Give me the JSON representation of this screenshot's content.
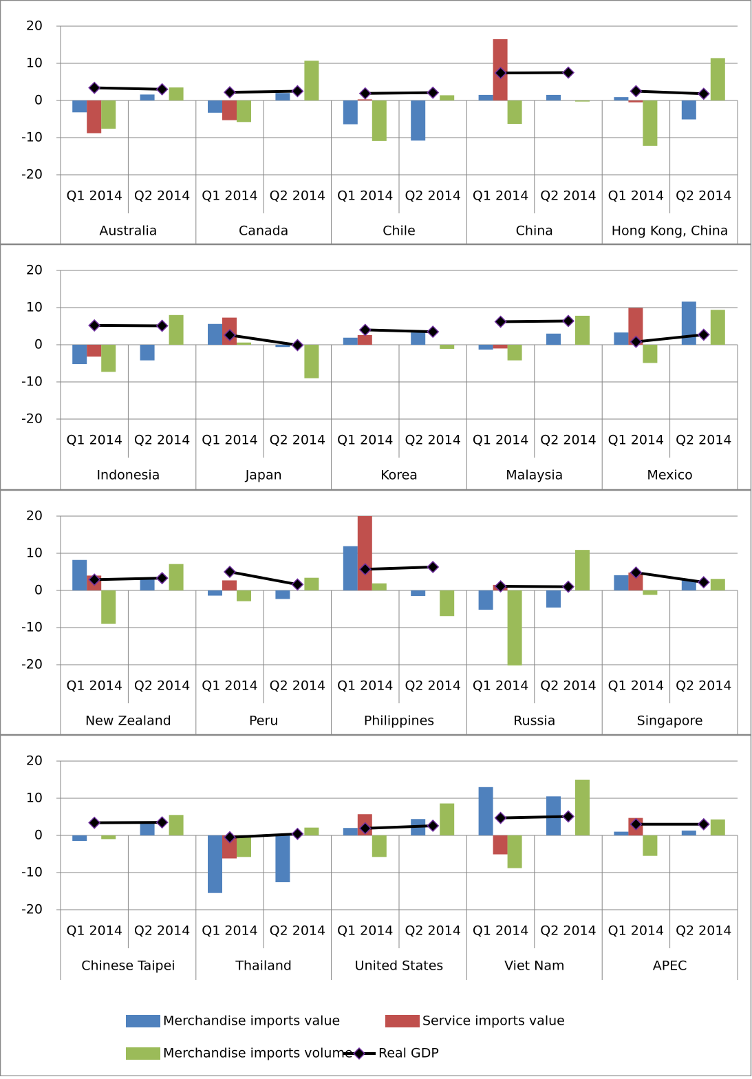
{
  "chart_data": {
    "type": "bar",
    "ylim": [
      -20,
      20
    ],
    "yticks": [
      -20,
      -10,
      0,
      10,
      20
    ],
    "grid": true,
    "categories": [
      "Q1 2014",
      "Q2 2014"
    ],
    "series": [
      {
        "name": "Merchandise imports value",
        "color": "#4f81bd",
        "type": "bar"
      },
      {
        "name": "Service imports value",
        "color": "#c0504d",
        "type": "bar"
      },
      {
        "name": "Merchandise imports volume",
        "color": "#9bbb59",
        "type": "bar"
      },
      {
        "name": "Real GDP",
        "color": "#000000",
        "type": "line"
      }
    ],
    "panels": [
      {
        "groups": [
          "Australia",
          "Canada",
          "Chile",
          "China",
          "Hong Kong, China"
        ],
        "values": [
          [
            -3.2,
            1.6,
            -3.3,
            2.0,
            -6.4,
            -10.8,
            1.5,
            1.5,
            0.9,
            -5.1
          ],
          [
            -8.8,
            null,
            -5.3,
            null,
            0.3,
            null,
            16.5,
            null,
            -0.5,
            null
          ],
          [
            -7.6,
            3.5,
            -5.8,
            10.7,
            -10.9,
            1.4,
            -6.3,
            -0.3,
            -12.2,
            11.4
          ],
          [
            3.4,
            3.0,
            2.2,
            2.5,
            1.9,
            2.1,
            7.4,
            7.5,
            2.5,
            1.8
          ]
        ]
      },
      {
        "groups": [
          "Indonesia",
          "Japan",
          "Korea",
          "Malaysia",
          "Mexico"
        ],
        "values": [
          [
            -5.2,
            -4.2,
            5.6,
            -0.6,
            1.9,
            3.3,
            -1.3,
            3.0,
            3.3,
            11.6
          ],
          [
            -3.2,
            null,
            7.3,
            null,
            2.6,
            null,
            -1.0,
            null,
            9.9,
            null
          ],
          [
            -7.3,
            8.0,
            0.6,
            -9.0,
            0,
            -1.1,
            -4.2,
            7.8,
            -4.9,
            9.4
          ],
          [
            5.2,
            5.1,
            2.6,
            -0.1,
            4.0,
            3.5,
            6.2,
            6.4,
            0.8,
            2.7
          ]
        ]
      },
      {
        "groups": [
          "New Zealand",
          "Peru",
          "Philippines",
          "Russia",
          "Singapore"
        ],
        "values": [
          [
            8.2,
            3.5,
            -1.4,
            -2.3,
            11.9,
            -1.5,
            -5.2,
            -4.6,
            4.1,
            2.8
          ],
          [
            4.0,
            null,
            2.7,
            null,
            20.0,
            null,
            1.5,
            null,
            4.8,
            null
          ],
          [
            -9.0,
            7.1,
            -2.9,
            3.4,
            1.9,
            -6.9,
            -20.2,
            10.9,
            -1.2,
            3.1
          ],
          [
            2.9,
            3.3,
            5.0,
            1.6,
            5.7,
            6.3,
            1.1,
            1.0,
            4.8,
            2.2
          ]
        ]
      },
      {
        "groups": [
          "Chinese Taipei",
          "Thailand",
          "United States",
          "Viet Nam",
          "APEC"
        ],
        "values": [
          [
            -1.5,
            3.5,
            -15.5,
            -12.6,
            2.0,
            4.4,
            13.0,
            10.5,
            1.0,
            1.3
          ],
          [
            0,
            null,
            -6.2,
            null,
            5.7,
            null,
            -5.1,
            null,
            4.7,
            null
          ],
          [
            -1.0,
            5.5,
            -5.8,
            2.1,
            -5.8,
            8.6,
            -8.8,
            15.0,
            -5.5,
            4.3
          ],
          [
            3.4,
            3.5,
            -0.5,
            0.4,
            1.9,
            2.6,
            4.7,
            5.1,
            3.0,
            3.0
          ]
        ]
      }
    ]
  }
}
